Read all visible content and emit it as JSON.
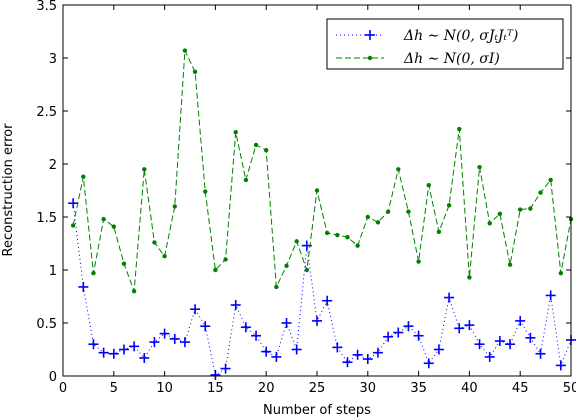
{
  "chart_data": {
    "type": "line",
    "xlabel": "Number of steps",
    "ylabel": "Reconstruction error",
    "xlim": [
      0,
      50
    ],
    "ylim": [
      0,
      3.5
    ],
    "xticks": [
      0,
      5,
      10,
      15,
      20,
      25,
      30,
      35,
      40,
      45,
      50
    ],
    "yticks": [
      0,
      0.5,
      1,
      1.5,
      2,
      2.5,
      3,
      3.5
    ],
    "xtick_labels": [
      "0",
      "5",
      "10",
      "15",
      "20",
      "25",
      "30",
      "35",
      "40",
      "45",
      "50"
    ],
    "ytick_labels": [
      "0",
      "0.5",
      "1",
      "1.5",
      "2",
      "2.5",
      "3",
      "3.5"
    ],
    "grid": false,
    "legend_position": "top-right",
    "x": [
      1,
      2,
      3,
      4,
      5,
      6,
      7,
      8,
      9,
      10,
      11,
      12,
      13,
      14,
      15,
      16,
      17,
      18,
      19,
      20,
      21,
      22,
      23,
      24,
      25,
      26,
      27,
      28,
      29,
      30,
      31,
      32,
      33,
      34,
      35,
      36,
      37,
      38,
      39,
      40,
      41,
      42,
      43,
      44,
      45,
      46,
      47,
      48,
      49,
      50
    ],
    "series": [
      {
        "name": "Δh ∼ N(0, σJₜJₜᵀ)",
        "color": "#0000ff",
        "linestyle": "dotted",
        "marker": "plus",
        "values": [
          1.63,
          0.84,
          0.3,
          0.22,
          0.21,
          0.25,
          0.28,
          0.17,
          0.32,
          0.4,
          0.35,
          0.32,
          0.63,
          0.47,
          0.01,
          0.07,
          0.67,
          0.46,
          0.38,
          0.23,
          0.18,
          0.5,
          0.25,
          1.23,
          0.52,
          0.71,
          0.27,
          0.13,
          0.2,
          0.16,
          0.22,
          0.37,
          0.41,
          0.47,
          0.38,
          0.12,
          0.25,
          0.74,
          0.45,
          0.48,
          0.3,
          0.18,
          0.33,
          0.3,
          0.52,
          0.36,
          0.21,
          0.76,
          0.1,
          0.34
        ]
      },
      {
        "name": "Δh ∼ N(0, σI)",
        "color": "#008000",
        "linestyle": "dashed",
        "marker": "dot",
        "values": [
          1.42,
          1.88,
          0.97,
          1.48,
          1.41,
          1.06,
          0.8,
          1.95,
          1.26,
          1.13,
          1.6,
          3.07,
          2.87,
          1.74,
          1.0,
          1.1,
          2.3,
          1.85,
          2.18,
          2.13,
          0.84,
          1.04,
          1.27,
          1.0,
          1.75,
          1.35,
          1.33,
          1.31,
          1.23,
          1.5,
          1.45,
          1.55,
          1.95,
          1.55,
          1.08,
          1.8,
          1.36,
          1.61,
          2.33,
          0.93,
          1.97,
          1.44,
          1.53,
          1.05,
          1.57,
          1.58,
          1.73,
          1.85,
          0.97,
          1.48
        ]
      }
    ]
  }
}
